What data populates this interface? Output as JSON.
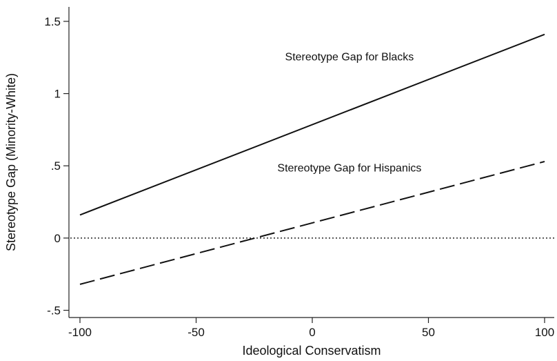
{
  "chart_data": {
    "type": "line",
    "xlabel": "Ideological Conservatism",
    "ylabel": "Stereotype Gap (Minority-White)",
    "xlim": [
      -100,
      100
    ],
    "ylim": [
      -0.55,
      1.6
    ],
    "xticks": [
      -100,
      -50,
      0,
      50,
      100
    ],
    "xtick_labels": [
      "-100",
      "-50",
      "0",
      "50",
      "100"
    ],
    "yticks": [
      -0.5,
      0,
      0.5,
      1,
      1.5
    ],
    "ytick_labels": [
      "-.5",
      "0",
      ".5",
      "1",
      "1.5"
    ],
    "grid": false,
    "reference_line": {
      "y": 0,
      "style": "dotted"
    },
    "series": [
      {
        "name": "Stereotype Gap for Blacks",
        "style": "solid",
        "x": [
          -100,
          100
        ],
        "y": [
          0.16,
          1.41
        ],
        "label_anchor": {
          "x": 16,
          "y": 1.23
        }
      },
      {
        "name": "Stereotype Gap for Hispanics",
        "style": "dashed",
        "x": [
          -100,
          100
        ],
        "y": [
          -0.32,
          0.53
        ],
        "label_anchor": {
          "x": 16,
          "y": 0.46
        }
      }
    ]
  }
}
